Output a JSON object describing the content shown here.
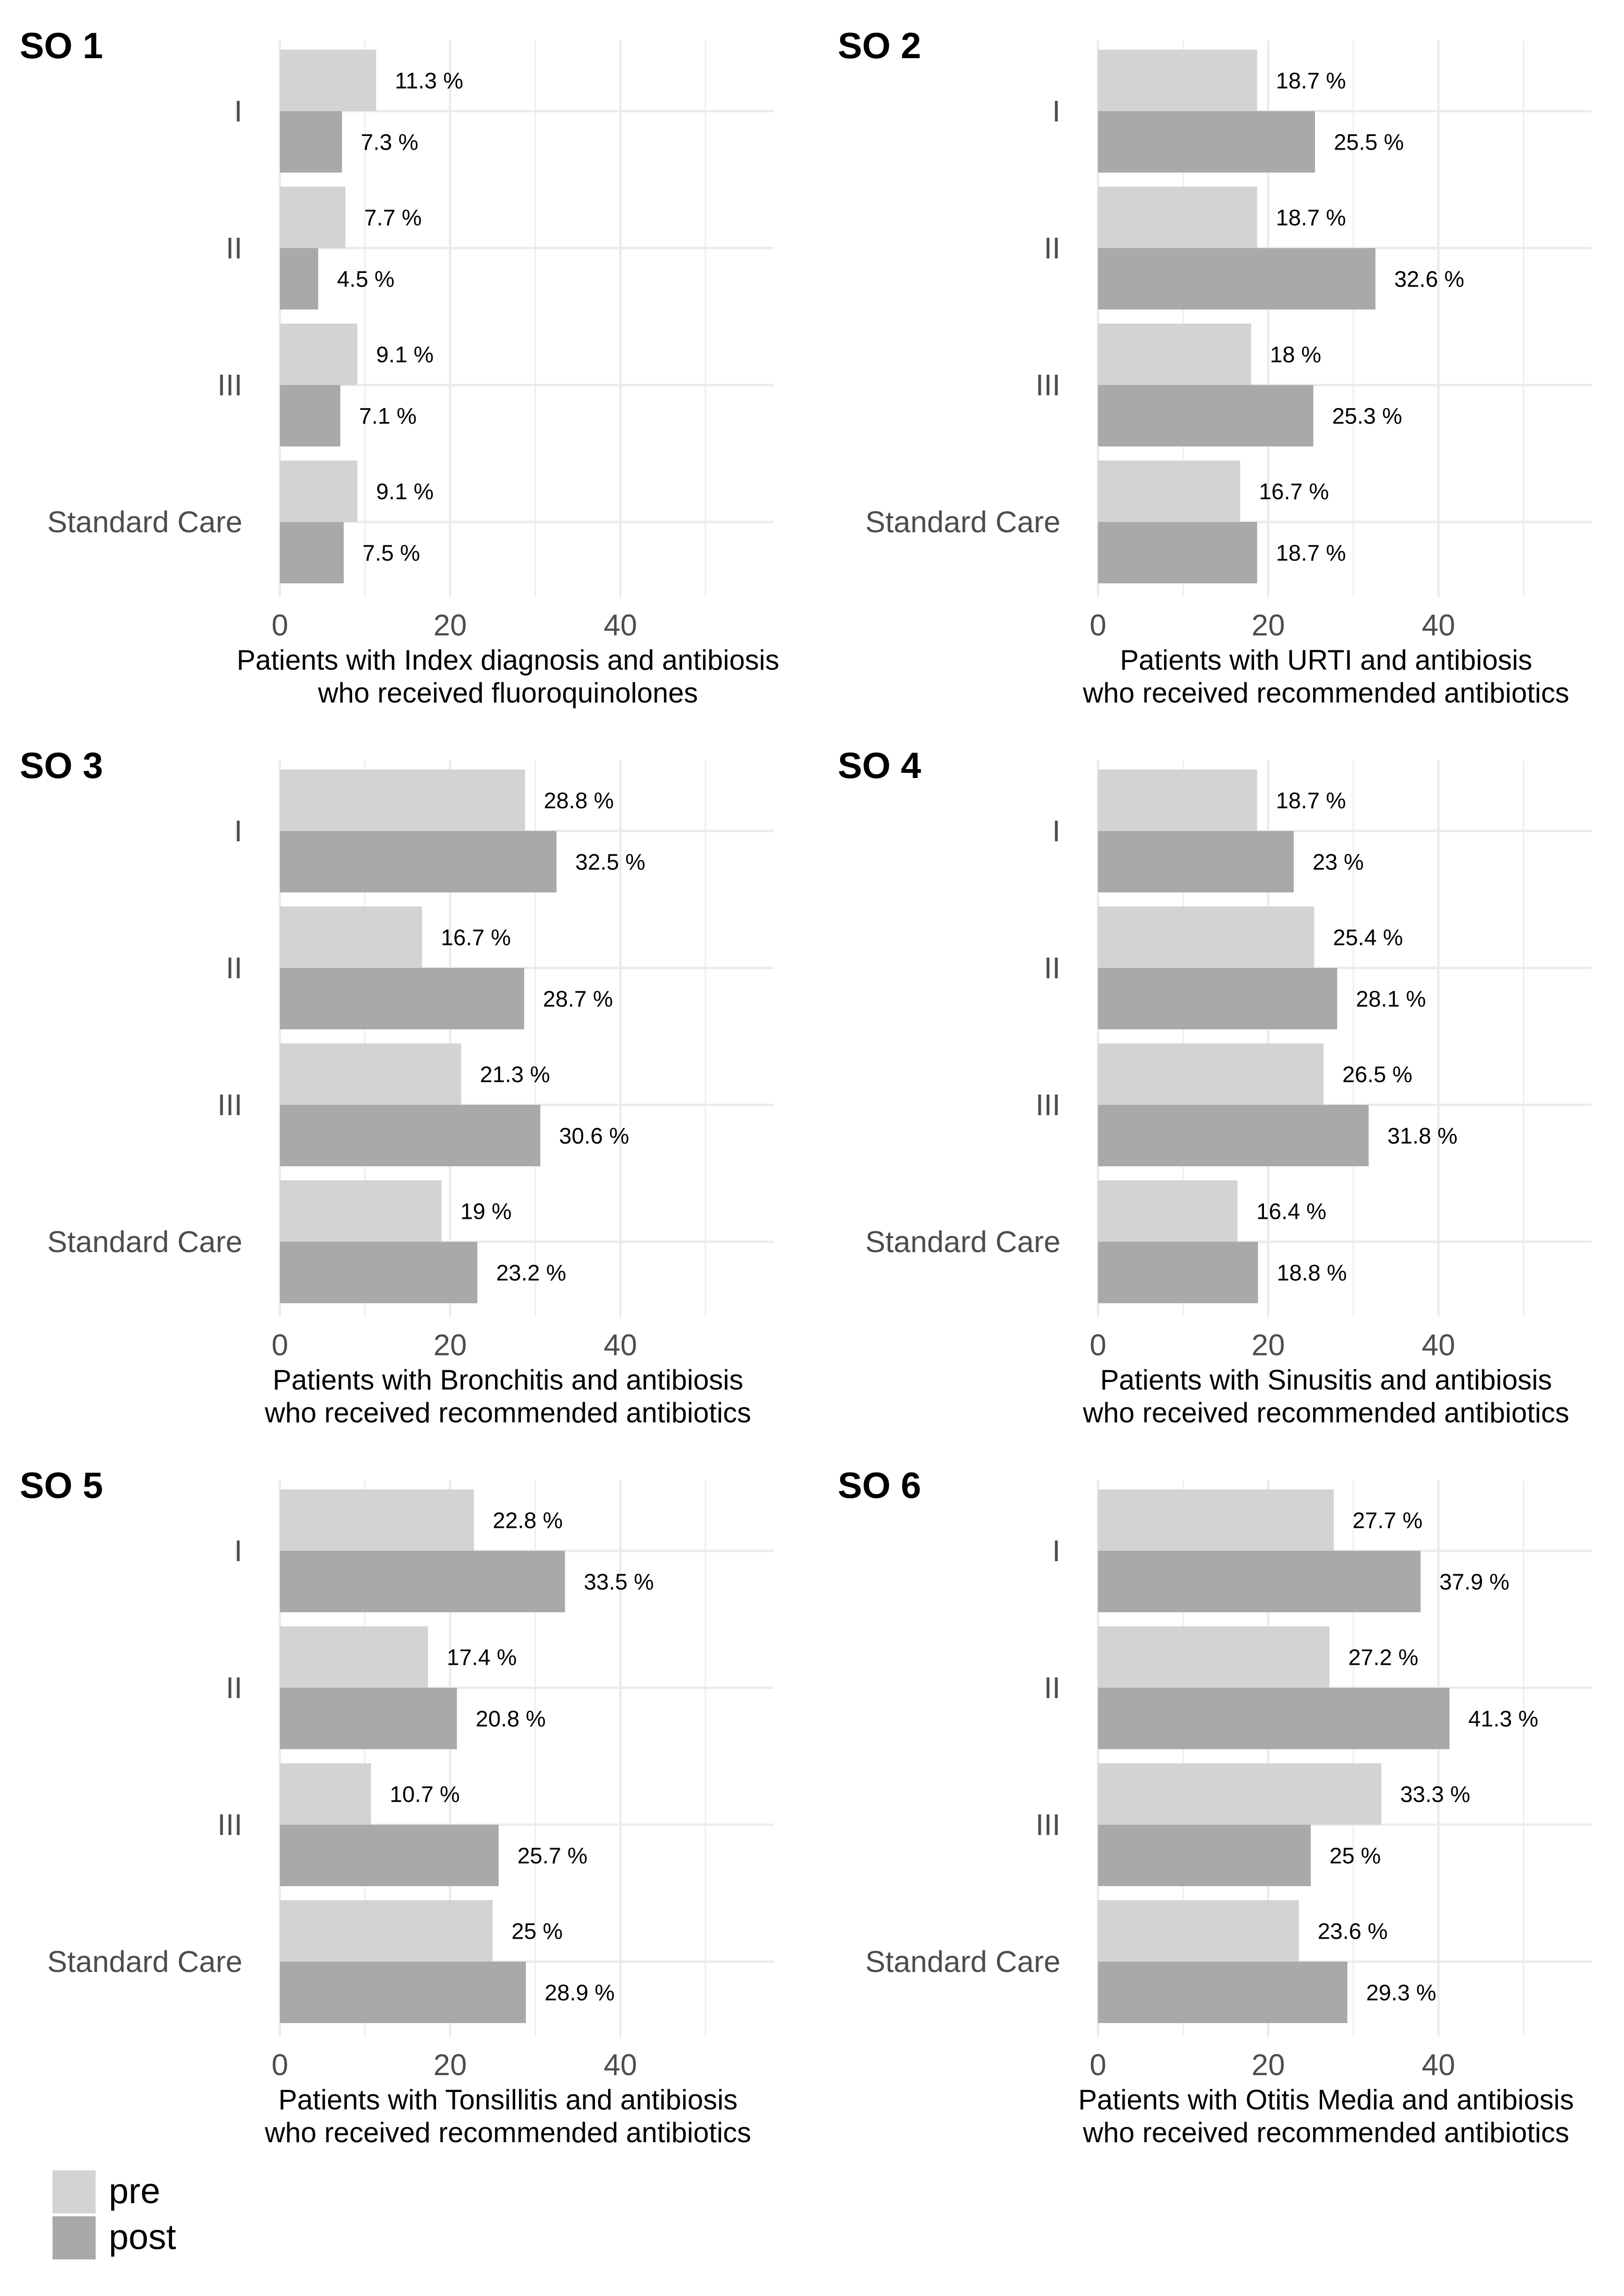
{
  "chart_data": [
    {
      "type": "bar",
      "title": "SO 1",
      "categories": [
        "I",
        "II",
        "III",
        "Standard Care"
      ],
      "series": [
        {
          "name": "pre",
          "values": [
            11.3,
            7.7,
            9.1,
            9.1
          ]
        },
        {
          "name": "post",
          "values": [
            7.3,
            4.5,
            7.1,
            7.5
          ]
        }
      ],
      "labels_pre": [
        "11.3 %",
        "7.7 %",
        "9.1 %",
        "9.1 %"
      ],
      "labels_post": [
        "7.3 %",
        "4.5 %",
        "7.1 %",
        "7.5 %"
      ],
      "xlabel": [
        "Patients with Index diagnosis and antibiosis",
        "who received fluoroquinolones"
      ],
      "xticks": [
        "0",
        "20",
        "40"
      ],
      "xlim": [
        0,
        58
      ]
    },
    {
      "type": "bar",
      "title": "SO 2",
      "categories": [
        "I",
        "II",
        "III",
        "Standard Care"
      ],
      "series": [
        {
          "name": "pre",
          "values": [
            18.7,
            18.7,
            18,
            16.7
          ]
        },
        {
          "name": "post",
          "values": [
            25.5,
            32.6,
            25.3,
            18.7
          ]
        }
      ],
      "labels_pre": [
        "18.7 %",
        "18.7 %",
        "18 %",
        "16.7 %"
      ],
      "labels_post": [
        "25.5 %",
        "32.6 %",
        "25.3 %",
        "18.7 %"
      ],
      "xlabel": [
        "Patients with URTI and antibiosis",
        "who received recommended antibiotics"
      ],
      "xticks": [
        "0",
        "20",
        "40"
      ],
      "xlim": [
        0,
        58
      ]
    },
    {
      "type": "bar",
      "title": "SO 3",
      "categories": [
        "I",
        "II",
        "III",
        "Standard Care"
      ],
      "series": [
        {
          "name": "pre",
          "values": [
            28.8,
            16.7,
            21.3,
            19
          ]
        },
        {
          "name": "post",
          "values": [
            32.5,
            28.7,
            30.6,
            23.2
          ]
        }
      ],
      "labels_pre": [
        "28.8 %",
        "16.7 %",
        "21.3 %",
        "19 %"
      ],
      "labels_post": [
        "32.5 %",
        "28.7 %",
        "30.6 %",
        "23.2 %"
      ],
      "xlabel": [
        "Patients with Bronchitis and antibiosis",
        "who received recommended antibiotics"
      ],
      "xticks": [
        "0",
        "20",
        "40"
      ],
      "xlim": [
        0,
        58
      ]
    },
    {
      "type": "bar",
      "title": "SO 4",
      "categories": [
        "I",
        "II",
        "III",
        "Standard Care"
      ],
      "series": [
        {
          "name": "pre",
          "values": [
            18.7,
            25.4,
            26.5,
            16.4
          ]
        },
        {
          "name": "post",
          "values": [
            23,
            28.1,
            31.8,
            18.8
          ]
        }
      ],
      "labels_pre": [
        "18.7 %",
        "25.4 %",
        "26.5 %",
        "16.4 %"
      ],
      "labels_post": [
        "23 %",
        "28.1 %",
        "31.8 %",
        "18.8 %"
      ],
      "xlabel": [
        "Patients with Sinusitis and antibiosis",
        "who received recommended antibiotics"
      ],
      "xticks": [
        "0",
        "20",
        "40"
      ],
      "xlim": [
        0,
        58
      ]
    },
    {
      "type": "bar",
      "title": "SO 5",
      "categories": [
        "I",
        "II",
        "III",
        "Standard Care"
      ],
      "series": [
        {
          "name": "pre",
          "values": [
            22.8,
            17.4,
            10.7,
            25
          ]
        },
        {
          "name": "post",
          "values": [
            33.5,
            20.8,
            25.7,
            28.9
          ]
        }
      ],
      "labels_pre": [
        "22.8 %",
        "17.4 %",
        "10.7 %",
        "25 %"
      ],
      "labels_post": [
        "33.5 %",
        "20.8 %",
        "25.7 %",
        "28.9 %"
      ],
      "xlabel": [
        "Patients with Tonsillitis and antibiosis",
        "who received recommended antibiotics"
      ],
      "xticks": [
        "0",
        "20",
        "40"
      ],
      "xlim": [
        0,
        58
      ]
    },
    {
      "type": "bar",
      "title": "SO 6",
      "categories": [
        "I",
        "II",
        "III",
        "Standard Care"
      ],
      "series": [
        {
          "name": "pre",
          "values": [
            27.7,
            27.2,
            33.3,
            23.6
          ]
        },
        {
          "name": "post",
          "values": [
            37.9,
            41.3,
            25,
            29.3
          ]
        }
      ],
      "labels_pre": [
        "27.7 %",
        "27.2 %",
        "33.3 %",
        "23.6 %"
      ],
      "labels_post": [
        "37.9 %",
        "41.3 %",
        "25 %",
        "29.3 %"
      ],
      "xlabel": [
        "Patients with Otitis Media and antibiosis",
        "who received recommended antibiotics"
      ],
      "xticks": [
        "0",
        "20",
        "40"
      ],
      "xlim": [
        0,
        58
      ]
    }
  ],
  "legend": {
    "placement": "bottom-left",
    "items": [
      {
        "name": "pre",
        "color": "#d3d3d3"
      },
      {
        "name": "post",
        "color": "#a9a9a9"
      }
    ]
  },
  "colors": {
    "pre": "#d3d3d3",
    "post": "#a9a9a9",
    "grid": "#ebebeb"
  }
}
